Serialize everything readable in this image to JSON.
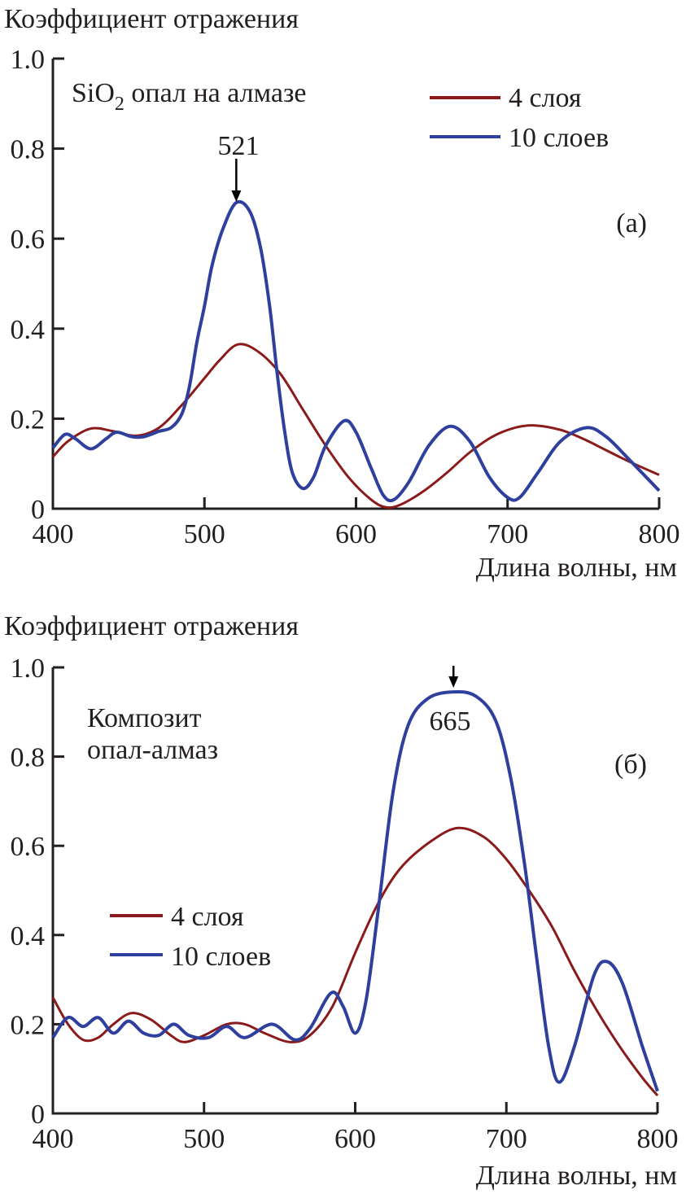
{
  "chart_data": [
    {
      "type": "line",
      "ylabel": "Коэффициент отражения",
      "xlabel": "Длина волны, нм",
      "annotation": "SiO2 опал на алмазе",
      "annotation_main": "SiO",
      "annotation_sub": "2",
      "annotation_rest": " опал на алмазе",
      "panel_label": "(а)",
      "peak_label": "521",
      "peak_x": 521,
      "xlim": [
        400,
        800
      ],
      "ylim": [
        0,
        1.0
      ],
      "xticks": [
        "400",
        "500",
        "600",
        "700",
        "800"
      ],
      "yticks": [
        "0",
        "0.2",
        "0.4",
        "0.6",
        "0.8",
        "1.0"
      ],
      "legend_position": "top-right",
      "series": [
        {
          "name": "4 слоя",
          "color": "#8b1a1a",
          "x": [
            400,
            410,
            425,
            440,
            455,
            470,
            485,
            500,
            510,
            522,
            535,
            550,
            565,
            580,
            595,
            610,
            620,
            630,
            645,
            660,
            675,
            690,
            705,
            718,
            735,
            750,
            765,
            780,
            800
          ],
          "y": [
            0.115,
            0.15,
            0.178,
            0.172,
            0.162,
            0.18,
            0.23,
            0.29,
            0.33,
            0.365,
            0.35,
            0.3,
            0.22,
            0.14,
            0.07,
            0.02,
            0.003,
            0.01,
            0.04,
            0.08,
            0.125,
            0.16,
            0.18,
            0.185,
            0.175,
            0.155,
            0.13,
            0.105,
            0.075
          ]
        },
        {
          "name": "10 слоев",
          "color": "#2e3f9e",
          "x": [
            400,
            408,
            415,
            425,
            435,
            442,
            452,
            460,
            470,
            478,
            485,
            490,
            495,
            500,
            505,
            512,
            521,
            530,
            537,
            543,
            548,
            553,
            558,
            565,
            572,
            580,
            592,
            600,
            610,
            618,
            625,
            635,
            648,
            662,
            675,
            688,
            700,
            708,
            720,
            735,
            752,
            765,
            780,
            800
          ],
          "y": [
            0.135,
            0.165,
            0.155,
            0.133,
            0.155,
            0.17,
            0.16,
            0.16,
            0.172,
            0.18,
            0.21,
            0.27,
            0.37,
            0.45,
            0.54,
            0.62,
            0.68,
            0.66,
            0.58,
            0.45,
            0.3,
            0.17,
            0.08,
            0.045,
            0.07,
            0.14,
            0.195,
            0.17,
            0.09,
            0.03,
            0.02,
            0.06,
            0.14,
            0.183,
            0.15,
            0.07,
            0.025,
            0.025,
            0.08,
            0.15,
            0.18,
            0.16,
            0.11,
            0.04
          ]
        }
      ]
    },
    {
      "type": "line",
      "ylabel": "Коэффициент отражения",
      "xlabel": "Длина волны, нм",
      "annotation_line1": "Композит",
      "annotation_line2": "опал-алмаз",
      "panel_label": "(б)",
      "peak_label": "665",
      "peak_x": 665,
      "xlim": [
        400,
        800
      ],
      "ylim": [
        0,
        1.0
      ],
      "xticks": [
        "400",
        "500",
        "600",
        "700",
        "800"
      ],
      "yticks": [
        "0",
        "0.2",
        "0.4",
        "0.6",
        "0.8",
        "1.0"
      ],
      "legend_position": "center-left",
      "series": [
        {
          "name": "4 слоя",
          "color": "#8b1a1a",
          "x": [
            400,
            410,
            420,
            430,
            440,
            452,
            465,
            478,
            487,
            500,
            515,
            527,
            540,
            557,
            570,
            585,
            600,
            615,
            630,
            650,
            668,
            685,
            700,
            715,
            730,
            745,
            760,
            775,
            790,
            800
          ],
          "y": [
            0.26,
            0.2,
            0.165,
            0.17,
            0.2,
            0.225,
            0.21,
            0.175,
            0.16,
            0.175,
            0.2,
            0.2,
            0.18,
            0.16,
            0.175,
            0.24,
            0.36,
            0.47,
            0.55,
            0.61,
            0.64,
            0.62,
            0.57,
            0.5,
            0.42,
            0.32,
            0.23,
            0.15,
            0.08,
            0.04
          ]
        },
        {
          "name": "10 слоев",
          "color": "#2e3f9e",
          "x": [
            400,
            410,
            420,
            430,
            440,
            450,
            460,
            470,
            480,
            490,
            503,
            515,
            527,
            545,
            560,
            570,
            584,
            592,
            600,
            607,
            615,
            625,
            635,
            648,
            665,
            680,
            693,
            703,
            712,
            720,
            728,
            735,
            745,
            758,
            767,
            777,
            790,
            800
          ],
          "y": [
            0.17,
            0.215,
            0.195,
            0.215,
            0.18,
            0.207,
            0.18,
            0.175,
            0.2,
            0.175,
            0.17,
            0.195,
            0.17,
            0.2,
            0.165,
            0.19,
            0.27,
            0.24,
            0.18,
            0.25,
            0.45,
            0.72,
            0.87,
            0.93,
            0.945,
            0.935,
            0.88,
            0.75,
            0.56,
            0.35,
            0.15,
            0.07,
            0.15,
            0.31,
            0.34,
            0.29,
            0.15,
            0.05
          ]
        }
      ]
    }
  ]
}
